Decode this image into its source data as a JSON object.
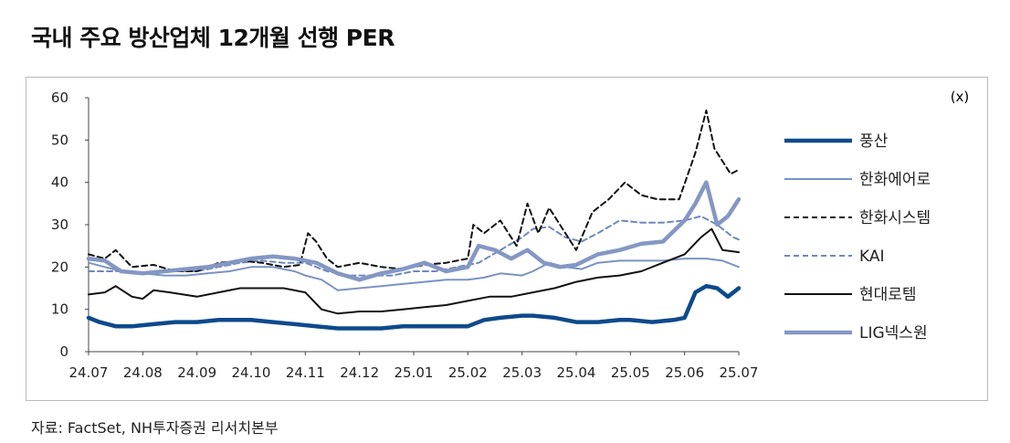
{
  "title": "국내 주요 방산업체 12개월 선행 PER",
  "source": "자료: FactSet, NH투자증권 리서치본부",
  "chart_data": {
    "type": "line",
    "unit": "(x)",
    "ylim": [
      0,
      60
    ],
    "y_ticks": [
      0,
      10,
      20,
      30,
      40,
      50,
      60
    ],
    "x_ticks": [
      "24.07",
      "24.08",
      "24.09",
      "24.10",
      "24.11",
      "24.12",
      "25.01",
      "25.02",
      "25.03",
      "25.04",
      "25.05",
      "25.06",
      "25.07"
    ],
    "legend_position": "right",
    "series": [
      {
        "name": "풍산",
        "color": "#0d4a8c",
        "width": 4.5,
        "dash": "",
        "x": [
          0,
          0.2,
          0.5,
          0.8,
          1.2,
          1.6,
          2,
          2.4,
          2.8,
          3,
          3.4,
          3.8,
          4.2,
          4.6,
          5,
          5.4,
          5.8,
          6.2,
          6.6,
          7,
          7.3,
          7.6,
          8,
          8.2,
          8.6,
          9,
          9.4,
          9.8,
          10,
          10.4,
          10.8,
          11,
          11.2,
          11.4,
          11.6,
          11.8,
          12
        ],
        "y": [
          8,
          7,
          6,
          6,
          6.5,
          7,
          7,
          7.5,
          7.5,
          7.5,
          7,
          6.5,
          6,
          5.5,
          5.5,
          5.5,
          6,
          6,
          6,
          6,
          7.5,
          8,
          8.5,
          8.5,
          8,
          7,
          7,
          7.5,
          7.5,
          7,
          7.5,
          8,
          14,
          15.5,
          15,
          13,
          15
        ]
      },
      {
        "name": "한화에어로",
        "color": "#7a93c4",
        "width": 2,
        "dash": "",
        "x": [
          0,
          0.3,
          0.6,
          1,
          1.4,
          1.8,
          2.2,
          2.6,
          3,
          3.4,
          3.8,
          4,
          4.3,
          4.6,
          5,
          5.4,
          5.8,
          6.2,
          6.6,
          7,
          7.3,
          7.6,
          8,
          8.2,
          8.5,
          8.8,
          9.1,
          9.4,
          9.8,
          10.2,
          10.6,
          11,
          11.4,
          11.7,
          12
        ],
        "y": [
          21,
          20,
          19,
          18.5,
          18,
          18,
          18.5,
          19,
          20,
          20,
          19,
          18,
          17,
          14.5,
          15,
          15.5,
          16,
          16.5,
          17,
          17,
          17.5,
          18.5,
          18,
          19,
          21,
          20,
          19.5,
          21,
          21.5,
          21.5,
          21.5,
          22,
          22,
          21.5,
          20
        ]
      },
      {
        "name": "한화시스템",
        "color": "#111111",
        "width": 2,
        "dash": "6 4",
        "x": [
          0,
          0.3,
          0.5,
          0.8,
          1.2,
          1.6,
          2,
          2.4,
          2.8,
          3.2,
          3.6,
          3.9,
          4.05,
          4.2,
          4.4,
          4.6,
          5,
          5.4,
          5.8,
          6.2,
          6.6,
          7,
          7.1,
          7.3,
          7.6,
          7.9,
          8.1,
          8.3,
          8.5,
          8.8,
          9,
          9.3,
          9.6,
          9.9,
          10.2,
          10.5,
          10.9,
          11.2,
          11.4,
          11.55,
          11.7,
          11.85,
          12
        ],
        "y": [
          23,
          22,
          24,
          20,
          20.5,
          19,
          19,
          21,
          21.5,
          21,
          20,
          20.5,
          28,
          26,
          22,
          20,
          21,
          20,
          19.5,
          20.5,
          21,
          22,
          30,
          28,
          31,
          25,
          35,
          28,
          34,
          28,
          24,
          33,
          36,
          40,
          37,
          36,
          36,
          47,
          57,
          48,
          45,
          42,
          43
        ]
      },
      {
        "name": "KAI",
        "color": "#6f88bd",
        "width": 2,
        "dash": "6 4",
        "x": [
          0,
          0.3,
          0.7,
          1.1,
          1.5,
          2,
          2.4,
          2.8,
          3.2,
          3.6,
          4,
          4.4,
          4.8,
          5.2,
          5.6,
          6,
          6.4,
          6.8,
          7.2,
          7.6,
          8,
          8.2,
          8.5,
          8.8,
          9.1,
          9.4,
          9.8,
          10.2,
          10.6,
          11,
          11.3,
          11.6,
          11.9,
          12
        ],
        "y": [
          19,
          19,
          19,
          18.5,
          19,
          19,
          20,
          21,
          21.5,
          21,
          21,
          19,
          18,
          18,
          18,
          19,
          19,
          20,
          21,
          24,
          27,
          29,
          29.5,
          27,
          26,
          28,
          31,
          30.5,
          30.5,
          31,
          32,
          30,
          27,
          26.5
        ]
      },
      {
        "name": "현대로템",
        "color": "#111111",
        "width": 2,
        "dash": "",
        "x": [
          0,
          0.3,
          0.5,
          0.8,
          1,
          1.2,
          1.5,
          2,
          2.4,
          2.8,
          3.2,
          3.6,
          4,
          4.3,
          4.6,
          5,
          5.4,
          5.8,
          6.2,
          6.6,
          7,
          7.4,
          7.8,
          8.2,
          8.6,
          9,
          9.4,
          9.8,
          10.2,
          10.6,
          11,
          11.3,
          11.5,
          11.7,
          12
        ],
        "y": [
          13.5,
          14,
          15.5,
          13,
          12.5,
          14.5,
          14,
          13,
          14,
          15,
          15,
          15,
          14,
          10,
          9,
          9.5,
          9.5,
          10,
          10.5,
          11,
          12,
          13,
          13,
          14,
          15,
          16.5,
          17.5,
          18,
          19,
          21,
          23,
          27,
          29,
          24,
          23.5
        ]
      },
      {
        "name": "LIG넥스원",
        "color": "#8497c4",
        "width": 4.5,
        "dash": "",
        "x": [
          0,
          0.3,
          0.6,
          1,
          1.4,
          1.8,
          2.2,
          2.6,
          3,
          3.4,
          3.8,
          4.2,
          4.6,
          5,
          5.4,
          5.8,
          6.2,
          6.6,
          7,
          7.2,
          7.5,
          7.8,
          8.1,
          8.4,
          8.7,
          9,
          9.4,
          9.8,
          10.2,
          10.6,
          11,
          11.2,
          11.4,
          11.6,
          11.8,
          12
        ],
        "y": [
          22,
          21.5,
          19,
          18.5,
          19,
          19.5,
          20,
          21,
          22,
          22.5,
          22,
          21,
          18.5,
          17,
          18.5,
          19.5,
          21,
          19,
          20,
          25,
          24,
          22,
          24,
          21,
          20,
          20.5,
          23,
          24,
          25.5,
          26,
          31,
          35,
          40,
          30,
          32,
          36
        ]
      }
    ]
  }
}
